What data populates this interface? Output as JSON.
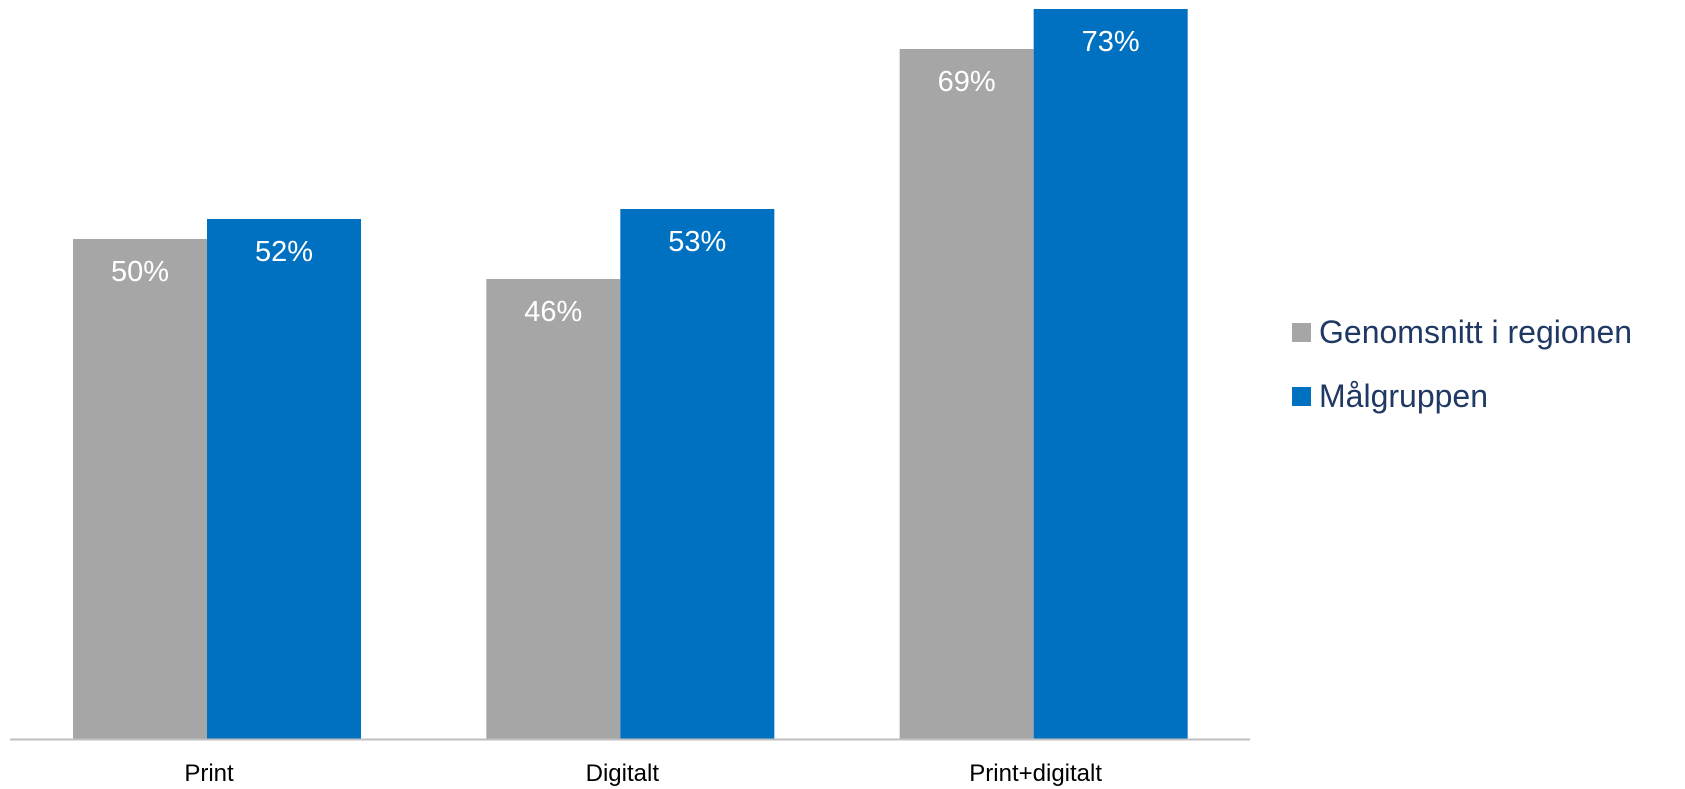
{
  "chart_data": {
    "type": "bar",
    "categories": [
      "Print",
      "Digitalt",
      "Print+digitalt"
    ],
    "series": [
      {
        "name": "Genomsnitt i regionen",
        "values": [
          50,
          46,
          69
        ],
        "labels": [
          "50%",
          "46%",
          "69%"
        ],
        "color": "#a6a6a6"
      },
      {
        "name": "Målgruppen",
        "values": [
          52,
          53,
          73
        ],
        "labels": [
          "52%",
          "53%",
          "73%"
        ],
        "color": "#0070c0"
      }
    ],
    "ylim": [
      0,
      73
    ],
    "grid": false,
    "legend_position": "right",
    "axis_color": "#bfbfbf"
  }
}
